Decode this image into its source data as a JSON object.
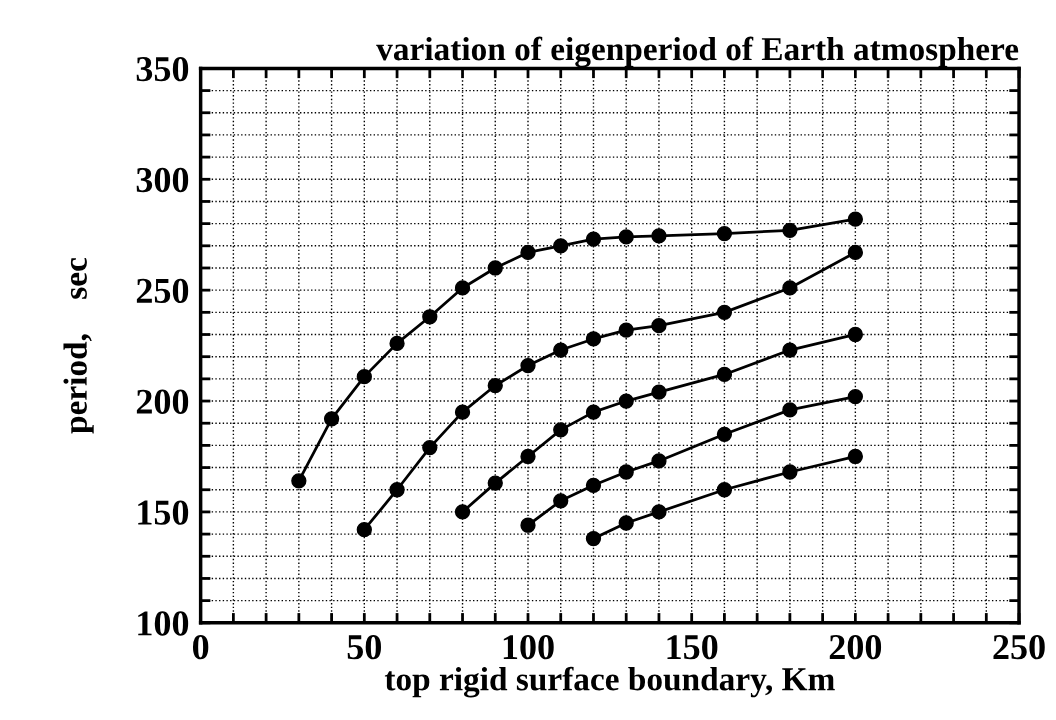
{
  "chart_data": {
    "type": "line",
    "title": "variation of eigenperiod of Earth atmosphere",
    "xlabel": "top rigid surface boundary, Km",
    "ylabel": "period,    sec",
    "xlim": [
      0,
      250
    ],
    "ylim": [
      100,
      350
    ],
    "xticks": [
      0,
      {
        "value": 10,
        "label": null
      },
      {
        "value": 20,
        "label": null
      },
      {
        "value": 30,
        "label": null
      },
      {
        "value": 40,
        "label": null
      },
      50,
      {
        "value": 60,
        "label": null
      },
      {
        "value": 70,
        "label": null
      },
      {
        "value": 80,
        "label": null
      },
      {
        "value": 90,
        "label": null
      },
      100,
      {
        "value": 110,
        "label": null
      },
      {
        "value": 120,
        "label": null
      },
      {
        "value": 130,
        "label": null
      },
      {
        "value": 140,
        "label": null
      },
      150,
      {
        "value": 160,
        "label": null
      },
      {
        "value": 170,
        "label": null
      },
      {
        "value": 180,
        "label": null
      },
      {
        "value": 190,
        "label": null
      },
      200,
      {
        "value": 210,
        "label": null
      },
      {
        "value": 220,
        "label": null
      },
      {
        "value": 230,
        "label": null
      },
      {
        "value": 240,
        "label": null
      },
      250
    ],
    "yticks": [
      100,
      {
        "value": 110,
        "label": null
      },
      {
        "value": 120,
        "label": null
      },
      {
        "value": 130,
        "label": null
      },
      {
        "value": 140,
        "label": null
      },
      150,
      {
        "value": 160,
        "label": null
      },
      {
        "value": 170,
        "label": null
      },
      {
        "value": 180,
        "label": null
      },
      {
        "value": 190,
        "label": null
      },
      200,
      {
        "value": 210,
        "label": null
      },
      {
        "value": 220,
        "label": null
      },
      {
        "value": 230,
        "label": null
      },
      {
        "value": 240,
        "label": null
      },
      250,
      {
        "value": 260,
        "label": null
      },
      {
        "value": 270,
        "label": null
      },
      {
        "value": 280,
        "label": null
      },
      {
        "value": 290,
        "label": null
      },
      300,
      {
        "value": 310,
        "label": null
      },
      {
        "value": 320,
        "label": null
      },
      {
        "value": 330,
        "label": null
      },
      {
        "value": 340,
        "label": null
      },
      350
    ],
    "grid": true,
    "marker": "circle",
    "line_style": "solid",
    "series": [
      {
        "color": "#000000",
        "x": [
          30,
          40,
          50,
          60,
          70,
          80,
          90,
          100,
          110,
          120,
          130,
          140,
          160,
          180,
          200
        ],
        "values": [
          164,
          192,
          211,
          226,
          238,
          251,
          260,
          267,
          270,
          273,
          274,
          274.5,
          275.5,
          277,
          282
        ]
      },
      {
        "color": "#000000",
        "x": [
          50,
          60,
          70,
          80,
          90,
          100,
          110,
          120,
          130,
          140,
          160,
          180,
          200
        ],
        "values": [
          142,
          160,
          179,
          195,
          207,
          216,
          223,
          228,
          232,
          234,
          240,
          251,
          267
        ]
      },
      {
        "color": "#000000",
        "x": [
          80,
          90,
          100,
          110,
          120,
          130,
          140,
          160,
          180,
          200
        ],
        "values": [
          150,
          163,
          175,
          187,
          195,
          200,
          204,
          212,
          223,
          230
        ]
      },
      {
        "color": "#000000",
        "x": [
          100,
          110,
          120,
          130,
          140,
          160,
          180,
          200
        ],
        "values": [
          144,
          155,
          162,
          168,
          173,
          185,
          196,
          202
        ]
      },
      {
        "color": "#000000",
        "x": [
          120,
          130,
          140,
          160,
          180,
          200
        ],
        "values": [
          138,
          145,
          150,
          160,
          168,
          175
        ]
      }
    ]
  }
}
